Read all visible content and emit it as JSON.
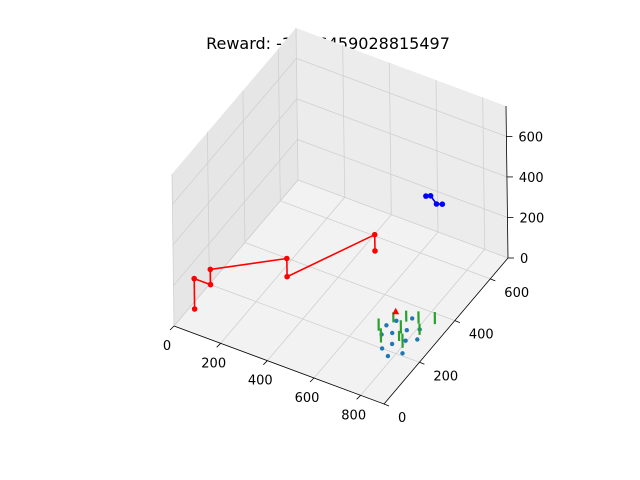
{
  "chart_data": {
    "type": "scatter",
    "title": "Reward: -316.6459028815497",
    "xlabel": "",
    "ylabel": "",
    "zlabel": "",
    "grid": true,
    "xlim": [
      0,
      900
    ],
    "ylim": [
      0,
      700
    ],
    "zlim": [
      0,
      750
    ],
    "x_ticks": [
      "0",
      "200",
      "400",
      "600",
      "800"
    ],
    "y_ticks": [
      "0",
      "200",
      "400",
      "600"
    ],
    "z_ticks": [
      "0",
      "200",
      "400",
      "600"
    ],
    "series": [
      {
        "kind": "path",
        "color": "#ff0000",
        "points": [
          {
            "x": 20,
            "y": 90,
            "z": 0
          },
          {
            "x": 20,
            "y": 90,
            "z": 150
          },
          {
            "x": 90,
            "y": 90,
            "z": 150
          },
          {
            "x": 90,
            "y": 90,
            "z": 225
          },
          {
            "x": 420,
            "y": 90,
            "z": 420
          },
          {
            "x": 420,
            "y": 90,
            "z": 330
          },
          {
            "x": 800,
            "y": 90,
            "z": 700
          },
          {
            "x": 800,
            "y": 90,
            "z": 620
          }
        ]
      },
      {
        "kind": "path",
        "color": "#0000ff",
        "points": [
          {
            "x": 860,
            "y": 300,
            "z": 700
          },
          {
            "x": 880,
            "y": 300,
            "z": 710
          },
          {
            "x": 905,
            "y": 300,
            "z": 680
          },
          {
            "x": 930,
            "y": 300,
            "z": 690
          }
        ]
      },
      {
        "kind": "points",
        "color": "#1f77b4",
        "points": [
          {
            "x": 690,
            "y": 290,
            "z": 0
          },
          {
            "x": 700,
            "y": 250,
            "z": 0
          },
          {
            "x": 710,
            "y": 320,
            "z": 0
          },
          {
            "x": 730,
            "y": 270,
            "z": 0
          },
          {
            "x": 740,
            "y": 200,
            "z": 0
          },
          {
            "x": 755,
            "y": 350,
            "z": 0
          },
          {
            "x": 760,
            "y": 230,
            "z": 0
          },
          {
            "x": 770,
            "y": 300,
            "z": 0
          },
          {
            "x": 780,
            "y": 180,
            "z": 0
          },
          {
            "x": 795,
            "y": 260,
            "z": 0
          },
          {
            "x": 810,
            "y": 320,
            "z": 0
          },
          {
            "x": 820,
            "y": 210,
            "z": 0
          },
          {
            "x": 830,
            "y": 280,
            "z": 0
          }
        ]
      },
      {
        "kind": "stems",
        "color": "#2ca02c",
        "points": [
          {
            "x": 680,
            "y": 260,
            "z": 60
          },
          {
            "x": 705,
            "y": 310,
            "z": 50
          },
          {
            "x": 720,
            "y": 220,
            "z": 70
          },
          {
            "x": 745,
            "y": 330,
            "z": 55
          },
          {
            "x": 760,
            "y": 280,
            "z": 65
          },
          {
            "x": 775,
            "y": 250,
            "z": 50
          },
          {
            "x": 790,
            "y": 340,
            "z": 60
          },
          {
            "x": 805,
            "y": 230,
            "z": 70
          },
          {
            "x": 825,
            "y": 300,
            "z": 55
          },
          {
            "x": 845,
            "y": 360,
            "z": 60
          }
        ]
      },
      {
        "kind": "marker",
        "color": "#ff0000",
        "shape": "triangle",
        "points": [
          {
            "x": 700,
            "y": 330,
            "z": 30
          }
        ]
      }
    ]
  }
}
